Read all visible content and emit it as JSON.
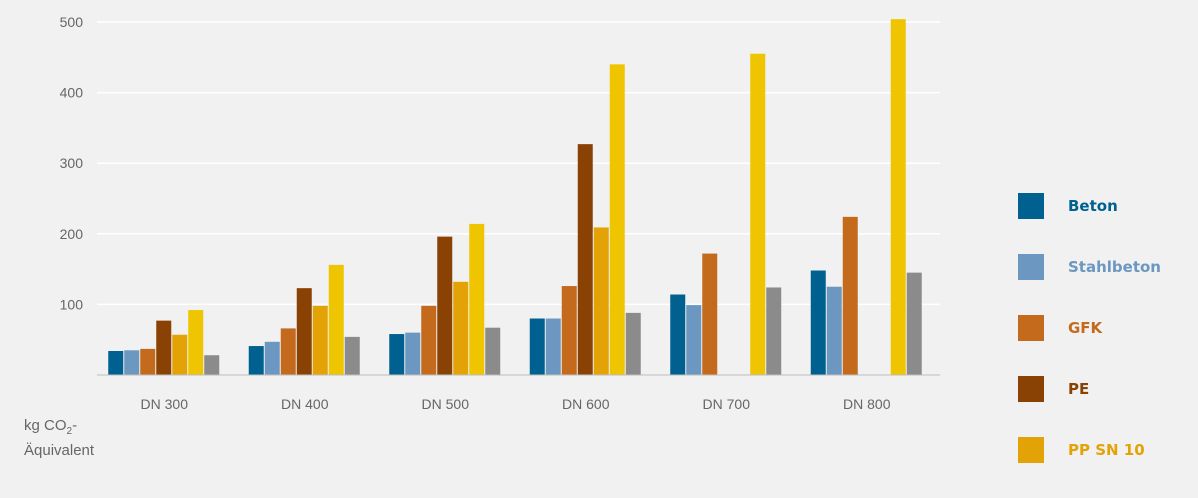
{
  "chart_data": {
    "type": "bar",
    "categories": [
      "DN 300",
      "DN 400",
      "DN 500",
      "DN 600",
      "DN 700",
      "DN 800"
    ],
    "series": [
      {
        "name": "Beton",
        "color": "#00608f",
        "values": [
          34,
          41,
          58,
          80,
          114,
          148
        ]
      },
      {
        "name": "Stahlbeton",
        "color": "#6b97c0",
        "values": [
          35,
          47,
          60,
          80,
          99,
          125
        ]
      },
      {
        "name": "GFK",
        "color": "#c46a1c",
        "values": [
          37,
          66,
          98,
          126,
          172,
          224
        ]
      },
      {
        "name": "PE",
        "color": "#8a4104",
        "values": [
          77,
          123,
          196,
          327,
          null,
          null
        ]
      },
      {
        "name": "PP SN 10",
        "color": "#e3a306",
        "values": [
          57,
          98,
          132,
          209,
          null,
          null
        ]
      },
      {
        "name": "",
        "color": "#eec500",
        "values": [
          92,
          156,
          214,
          440,
          455,
          504
        ]
      },
      {
        "name": "",
        "color": "#8b8b8b",
        "values": [
          28,
          54,
          67,
          88,
          124,
          145
        ]
      }
    ],
    "yticks": [
      100,
      200,
      300,
      400,
      500
    ],
    "ylim": [
      0,
      500
    ],
    "grid": true,
    "legend_position": "right",
    "ylabel": {
      "prefix": "kg CO",
      "sub": "2",
      "suffix": "-",
      "line2": "Äquivalent"
    }
  }
}
